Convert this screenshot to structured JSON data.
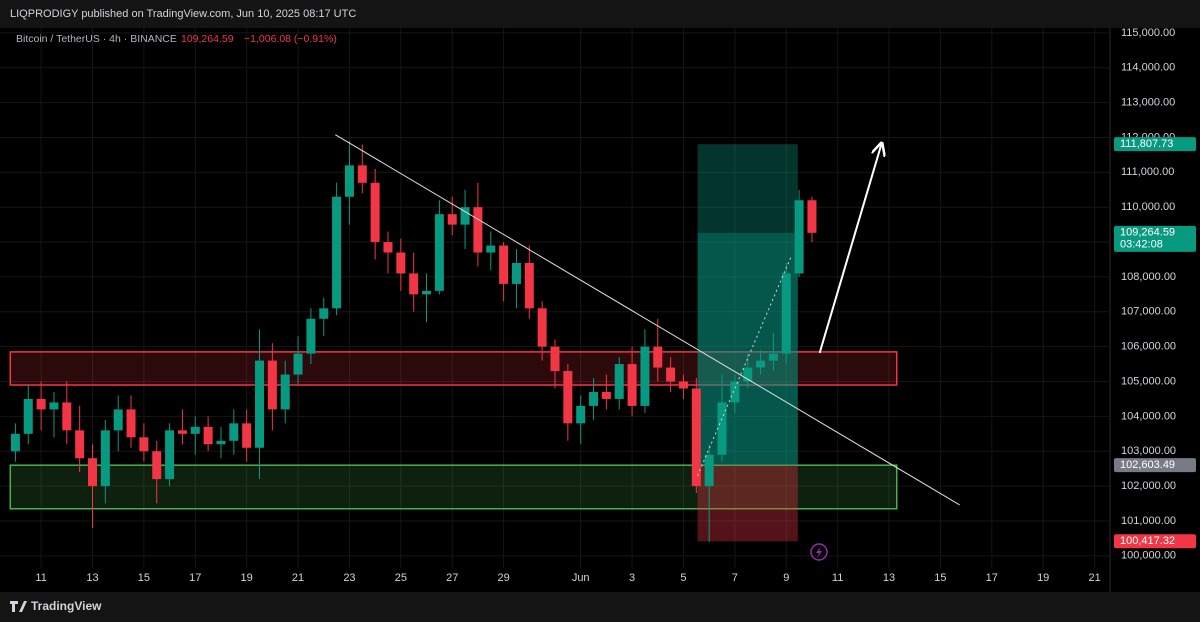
{
  "header": {
    "publisher": "LIQPRODIGY published on TradingView.com, Jun 10, 2025 08:17 UTC"
  },
  "branding": "TradingView",
  "chart_data": {
    "type": "candlestick",
    "symbol": "Bitcoin / TetherUS · 4h · BINANCE",
    "last": "109,264.59",
    "change": "−1,006.08 (−0.91%)",
    "up_color": "#089981",
    "down_color": "#f23645",
    "grid": true,
    "xlim": [
      9.4,
      52.6
    ],
    "xticks": [
      11,
      13,
      15,
      17,
      19,
      21,
      23,
      25,
      27,
      29,
      {
        "value": 32,
        "label": "Jun"
      },
      {
        "value": 34,
        "label": "3"
      },
      {
        "value": 36,
        "label": "5"
      },
      {
        "value": 38,
        "label": "7"
      },
      {
        "value": 40,
        "label": "9"
      },
      {
        "value": 42,
        "label": "11"
      },
      {
        "value": 44,
        "label": "13"
      },
      {
        "value": 46,
        "label": "15"
      },
      {
        "value": 48,
        "label": "17"
      },
      {
        "value": 50,
        "label": "19"
      },
      {
        "value": 52,
        "label": "21"
      }
    ],
    "ylim": [
      99020,
      115140
    ],
    "yticks": [
      {
        "value": 100000,
        "label": "100,000.00"
      },
      {
        "value": 101000,
        "label": "101,000.00"
      },
      {
        "value": 102000,
        "label": "102,000.00"
      },
      {
        "value": 103000,
        "label": "103,000.00"
      },
      {
        "value": 104000,
        "label": "104,000.00"
      },
      {
        "value": 105000,
        "label": "105,000.00"
      },
      {
        "value": 106000,
        "label": "106,000.00"
      },
      {
        "value": 107000,
        "label": "107,000.00"
      },
      {
        "value": 108000,
        "label": "108,000.00"
      },
      {
        "value": 109000,
        "label": "109,000.00"
      },
      {
        "value": 110000,
        "label": "110,000.00"
      },
      {
        "value": 111000,
        "label": "111,000.00"
      },
      {
        "value": 112000,
        "label": "112,000.00"
      },
      {
        "value": 113000,
        "label": "113,000.00"
      },
      {
        "value": 114000,
        "label": "114,000.00"
      },
      {
        "value": 115000,
        "label": "115,000.00"
      }
    ],
    "x": [
      10,
      10.5,
      11,
      11.5,
      12,
      12.5,
      13,
      13.5,
      14,
      14.5,
      15,
      15.5,
      16,
      16.5,
      17,
      17.5,
      18,
      18.5,
      19,
      19.5,
      20,
      20.5,
      21,
      21.5,
      22,
      22.5,
      23,
      23.5,
      24,
      24.5,
      25,
      25.5,
      26,
      26.5,
      27,
      27.5,
      28,
      28.5,
      29,
      29.5,
      30,
      30.5,
      31,
      31.5,
      32,
      32.5,
      33,
      33.5,
      34,
      34.5,
      35,
      35.5,
      36,
      36.5,
      37,
      37.5,
      38,
      38.5,
      39,
      39.5,
      40,
      40.5,
      41
    ],
    "open": [
      103000,
      103500,
      104500,
      104200,
      104400,
      103600,
      102800,
      102000,
      103600,
      104200,
      103400,
      103000,
      102200,
      103600,
      103500,
      103700,
      103200,
      103300,
      103800,
      103100,
      105600,
      104200,
      105200,
      105800,
      106800,
      107100,
      110300,
      111200,
      110700,
      109000,
      108700,
      108100,
      107500,
      107600,
      109800,
      109500,
      110000,
      108700,
      108900,
      107800,
      108400,
      107100,
      106000,
      105300,
      103800,
      104300,
      104700,
      104500,
      105500,
      104300,
      106000,
      105400,
      105000,
      104800,
      102000,
      102900,
      104400,
      105000,
      105400,
      105600,
      105800,
      108100,
      110200
    ],
    "high": [
      103800,
      104900,
      105000,
      104700,
      105000,
      104300,
      103200,
      103900,
      104600,
      104600,
      103800,
      103300,
      103800,
      104200,
      104000,
      104000,
      103700,
      104200,
      104200,
      106500,
      106100,
      105600,
      106300,
      107100,
      107400,
      110700,
      111900,
      111800,
      111100,
      109300,
      109100,
      108700,
      108100,
      110200,
      110300,
      110500,
      110700,
      109300,
      109000,
      108800,
      108900,
      107300,
      106200,
      105500,
      104600,
      105100,
      105200,
      105700,
      106000,
      106500,
      106800,
      105700,
      105200,
      105100,
      103200,
      105200,
      105200,
      105800,
      105900,
      106400,
      108400,
      110500,
      110300
    ],
    "low": [
      102700,
      103200,
      103600,
      103400,
      103200,
      102400,
      100800,
      101500,
      103000,
      103100,
      102700,
      101500,
      102000,
      103200,
      102900,
      103000,
      102800,
      102900,
      102700,
      102200,
      103600,
      103800,
      104900,
      105500,
      106300,
      106900,
      109500,
      110400,
      108500,
      108100,
      107600,
      107000,
      106700,
      107500,
      109200,
      108800,
      108300,
      108200,
      107300,
      107100,
      106800,
      105600,
      104800,
      103300,
      103200,
      103900,
      104200,
      104200,
      104000,
      104100,
      105000,
      104700,
      104500,
      101800,
      100400,
      102700,
      104100,
      104800,
      105200,
      105300,
      105500,
      108000,
      109000
    ],
    "close": [
      103500,
      104500,
      104200,
      104400,
      103600,
      102800,
      102000,
      103600,
      104200,
      103400,
      103000,
      102200,
      103600,
      103500,
      103700,
      103200,
      103300,
      103800,
      103100,
      105600,
      104200,
      105200,
      105800,
      106800,
      107100,
      110300,
      111200,
      110700,
      109000,
      108700,
      108100,
      107500,
      107600,
      109800,
      109500,
      110000,
      108700,
      108900,
      107800,
      108400,
      107100,
      106000,
      105300,
      103800,
      104300,
      104700,
      104500,
      105500,
      104300,
      106000,
      105400,
      105000,
      104800,
      102000,
      102900,
      104400,
      105000,
      105400,
      105600,
      105800,
      108100,
      110200,
      109264.59
    ],
    "zones": [
      {
        "low": 104900,
        "high": 105850,
        "x_start": 9.8,
        "x_end": 44.3,
        "color": "#f23645"
      },
      {
        "low": 101350,
        "high": 102600,
        "x_start": 9.8,
        "x_end": 44.3,
        "color": "#4caf50"
      }
    ],
    "position": {
      "x_start": 36.55,
      "x_end": 40.45
    },
    "trendline": {
      "x": [
        22.45,
        46.75
      ],
      "y": [
        112080,
        101460
      ]
    },
    "arrow": {
      "x": [
        41.3,
        43.7
      ],
      "y": [
        105820,
        111800
      ]
    },
    "path_line": {
      "x": [
        36.55,
        40.2
      ],
      "y": [
        102300,
        108600
      ]
    },
    "price_labels": [
      {
        "value": 111807.73,
        "label": "111,807.73",
        "color": "#089981"
      },
      {
        "value": 109264.59,
        "label": "109,264.59",
        "countdown": "03:42:08",
        "color": "#089981"
      },
      {
        "value": 102603.49,
        "label": "102,603.49",
        "color": "#787b86"
      },
      {
        "value": 100417.32,
        "label": "100,417.32",
        "color": "#f23645"
      }
    ]
  }
}
